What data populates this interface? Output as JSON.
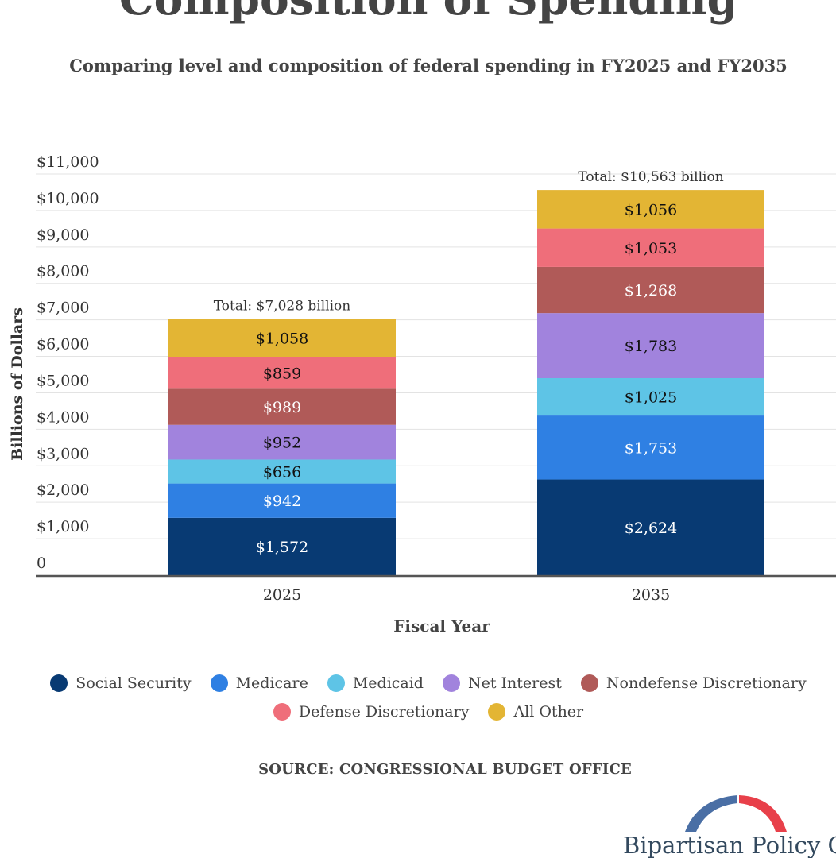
{
  "title": "Composition of Spending",
  "subtitle": "Comparing level and composition of federal spending in FY2025 and FY2035",
  "source": "SOURCE: CONGRESSIONAL BUDGET OFFICE",
  "logo_text": "Bipartisan Policy Center",
  "colors": {
    "social_security": "#083a73",
    "medicare": "#2f80e3",
    "medicaid": "#5ec4e6",
    "net_interest": "#a183dd",
    "nondefense_discretionary": "#b05a58",
    "defense_discretionary": "#ef6e7a",
    "all_other": "#e3b534",
    "logo_blue": "#4a6fa5",
    "logo_red": "#e8404a"
  },
  "chart_data": {
    "type": "bar",
    "stacked": true,
    "categories": [
      "2025",
      "2035"
    ],
    "xlabel": "Fiscal Year",
    "ylabel": "Billions of Dollars",
    "ylim": [
      0,
      11000
    ],
    "yticks": [
      0,
      1000,
      2000,
      3000,
      4000,
      5000,
      6000,
      7000,
      8000,
      9000,
      10000,
      11000
    ],
    "ytick_labels": [
      "0",
      "$1,000",
      "$2,000",
      "$3,000",
      "$4,000",
      "$5,000",
      "$6,000",
      "$7,000",
      "$8,000",
      "$9,000",
      "$10,000",
      "$11,000"
    ],
    "grid": true,
    "legend_position": "bottom",
    "totals": [
      7028,
      10563
    ],
    "total_labels": [
      "Total: $7,028 billion",
      "Total: $10,563 billion"
    ],
    "series": [
      {
        "name": "Social Security",
        "key": "social_security",
        "values": [
          1572,
          2624
        ],
        "labels": [
          "$1,572",
          "$2,624"
        ],
        "label_color": "#ffffff"
      },
      {
        "name": "Medicare",
        "key": "medicare",
        "values": [
          942,
          1753
        ],
        "labels": [
          "$942",
          "$1,753"
        ],
        "label_color": "#ffffff"
      },
      {
        "name": "Medicaid",
        "key": "medicaid",
        "values": [
          656,
          1025
        ],
        "labels": [
          "$656",
          "$1,025"
        ],
        "label_color": "#111111"
      },
      {
        "name": "Net Interest",
        "key": "net_interest",
        "values": [
          952,
          1783
        ],
        "labels": [
          "$952",
          "$1,783"
        ],
        "label_color": "#111111"
      },
      {
        "name": "Nondefense Discretionary",
        "key": "nondefense_discretionary",
        "values": [
          989,
          1268
        ],
        "labels": [
          "$989",
          "$1,268"
        ],
        "label_color": "#ffffff"
      },
      {
        "name": "Defense Discretionary",
        "key": "defense_discretionary",
        "values": [
          859,
          1053
        ],
        "labels": [
          "$859",
          "$1,053"
        ],
        "label_color": "#111111"
      },
      {
        "name": "All Other",
        "key": "all_other",
        "values": [
          1058,
          1056
        ],
        "labels": [
          "$1,058",
          "$1,056"
        ],
        "label_color": "#111111"
      }
    ]
  }
}
